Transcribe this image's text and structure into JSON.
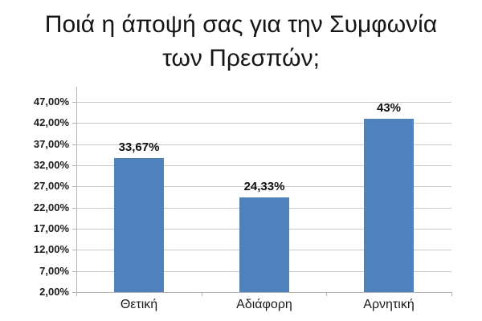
{
  "title": {
    "lines": [
      "Ποιά η άποψή σας για την Συμφωνία",
      "των Πρεσπών;"
    ]
  },
  "chart_data": {
    "type": "bar",
    "title": "Ποιά η άποψή σας για την Συμφωνία των Πρεσπών;",
    "categories": [
      "Θετική",
      "Αδιάφορη",
      "Αρνητική"
    ],
    "values": [
      33.67,
      24.33,
      43
    ],
    "data_labels": [
      "33,67%",
      "24,33%",
      "43%"
    ],
    "series": [
      {
        "name": "",
        "values": [
          33.67,
          24.33,
          43
        ]
      }
    ],
    "xlabel": "",
    "ylabel": "",
    "ylim": [
      2,
      47
    ],
    "y_major_unit": 5,
    "y_tick_labels": [
      "47,00%",
      "42,00%",
      "37,00%",
      "32,00%",
      "27,00%",
      "22,00%",
      "17,00%",
      "12,00%",
      "7,00%",
      "2,00%"
    ],
    "grid": true,
    "legend": "none",
    "decimal_separator": ",",
    "colors": {
      "bar": "#4f81bd",
      "gridline": "#c9c9c9",
      "axis": "#b5b5b5",
      "text": "#1a1a1a"
    }
  }
}
